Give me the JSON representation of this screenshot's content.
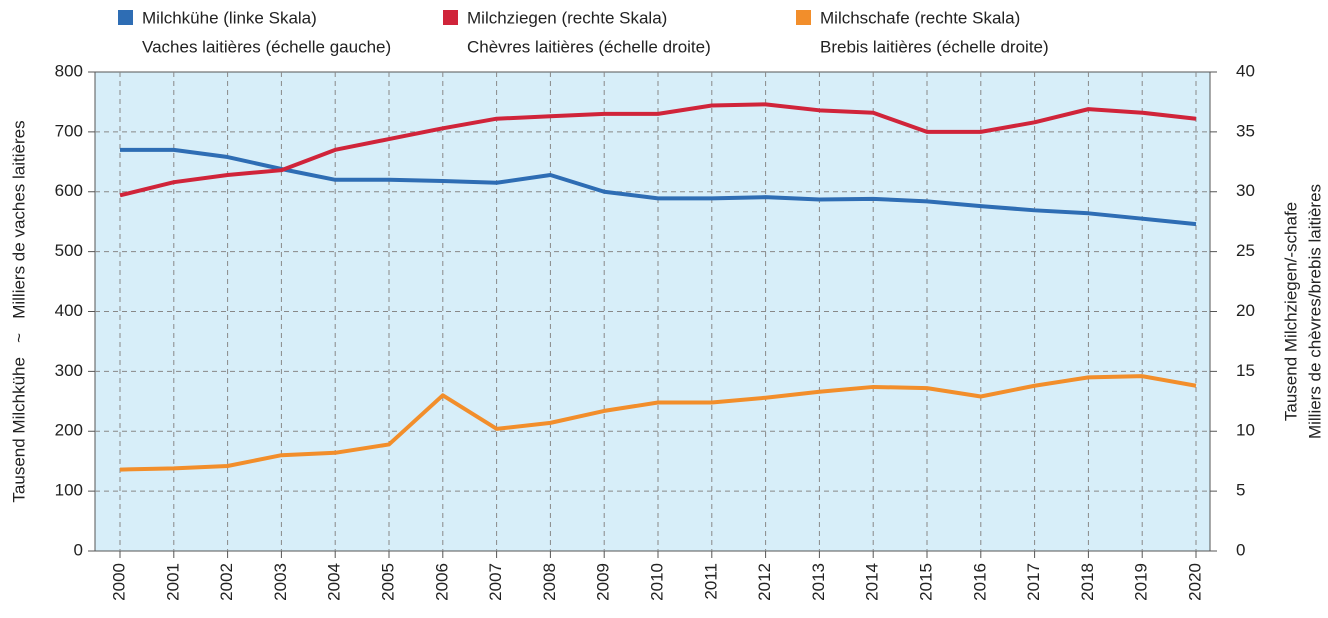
{
  "chart_data": {
    "type": "line",
    "ylabel": "Tausend Milchkühe   ~   Milliers de vaches laitières",
    "y2label": [
      "Tausend Milchziegen/-schafe",
      "Milliers de chèvres/brebis laitières"
    ],
    "categories": [
      "2000",
      "2001",
      "2002",
      "2003",
      "2004",
      "2005",
      "2006",
      "2007",
      "2008",
      "2009",
      "2010",
      "2011",
      "2012",
      "2013",
      "2014",
      "2015",
      "2016",
      "2017",
      "2018",
      "2019",
      "2020"
    ],
    "series": [
      {
        "name": "Milchkühe (linke Skala)",
        "name_fr": "Vaches laitières (échelle gauche)",
        "color": "#2e6db4",
        "axis": "y",
        "values": [
          670,
          670,
          658,
          638,
          620,
          620,
          618,
          615,
          628,
          600,
          589,
          589,
          591,
          587,
          588,
          584,
          576,
          569,
          564,
          555,
          546
        ]
      },
      {
        "name": "Milchziegen (rechte Skala)",
        "name_fr": "Chèvres laitières (échelle droite)",
        "color": "#d0243a",
        "axis": "y2",
        "values": [
          29.7,
          30.8,
          31.4,
          31.8,
          33.5,
          34.4,
          35.3,
          36.1,
          36.3,
          36.5,
          36.5,
          37.2,
          37.3,
          36.8,
          36.6,
          35.0,
          35.0,
          35.8,
          36.9,
          36.6,
          36.1
        ]
      },
      {
        "name": "Milchschafe (rechte Skala)",
        "name_fr": "Brebis laitières (échelle droite)",
        "color": "#f28e2b",
        "axis": "y2",
        "values": [
          6.8,
          6.9,
          7.1,
          8.0,
          8.2,
          8.9,
          13.0,
          10.2,
          10.7,
          11.7,
          12.4,
          12.4,
          12.8,
          13.3,
          13.7,
          13.6,
          12.9,
          13.8,
          14.5,
          14.6,
          13.8
        ]
      }
    ],
    "ylim": [
      0,
      800
    ],
    "yticks": [
      0,
      100,
      200,
      300,
      400,
      500,
      600,
      700,
      800
    ],
    "y2lim": [
      0,
      40
    ],
    "y2ticks": [
      0,
      5,
      10,
      15,
      20,
      25,
      30,
      35,
      40
    ],
    "grid": true
  }
}
